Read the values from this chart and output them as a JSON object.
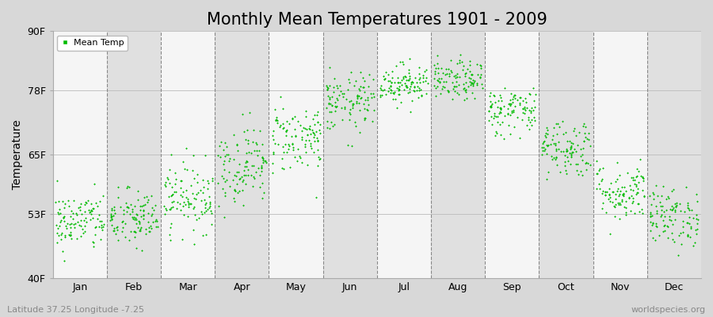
{
  "title": "Monthly Mean Temperatures 1901 - 2009",
  "ylabel": "Temperature",
  "xlabel_labels": [
    "Jan",
    "Feb",
    "Mar",
    "Apr",
    "May",
    "Jun",
    "Jul",
    "Aug",
    "Sep",
    "Oct",
    "Nov",
    "Dec"
  ],
  "ytick_labels": [
    "40F",
    "53F",
    "65F",
    "78F",
    "90F"
  ],
  "ytick_values": [
    40,
    53,
    65,
    78,
    90
  ],
  "ylim": [
    40,
    90
  ],
  "xlim": [
    0,
    12
  ],
  "legend_label": "Mean Temp",
  "dot_color": "#00bb00",
  "dot_size": 3,
  "bg_white": "#f5f5f5",
  "bg_gray": "#e0e0e0",
  "fig_bg": "#d8d8d8",
  "subtitle_left": "Latitude 37.25 Longitude -7.25",
  "subtitle_right": "worldspecies.org",
  "title_fontsize": 15,
  "axis_label_fontsize": 10,
  "tick_label_fontsize": 9,
  "monthly_mean_temps_F": [
    51.5,
    52.0,
    56.5,
    63.0,
    68.5,
    75.5,
    79.5,
    80.0,
    74.0,
    66.5,
    57.5,
    52.5
  ],
  "monthly_std_F": [
    3.0,
    3.0,
    3.5,
    4.0,
    3.5,
    3.0,
    2.0,
    2.0,
    2.5,
    3.0,
    3.0,
    3.0
  ],
  "n_years": 109,
  "seed": 42
}
